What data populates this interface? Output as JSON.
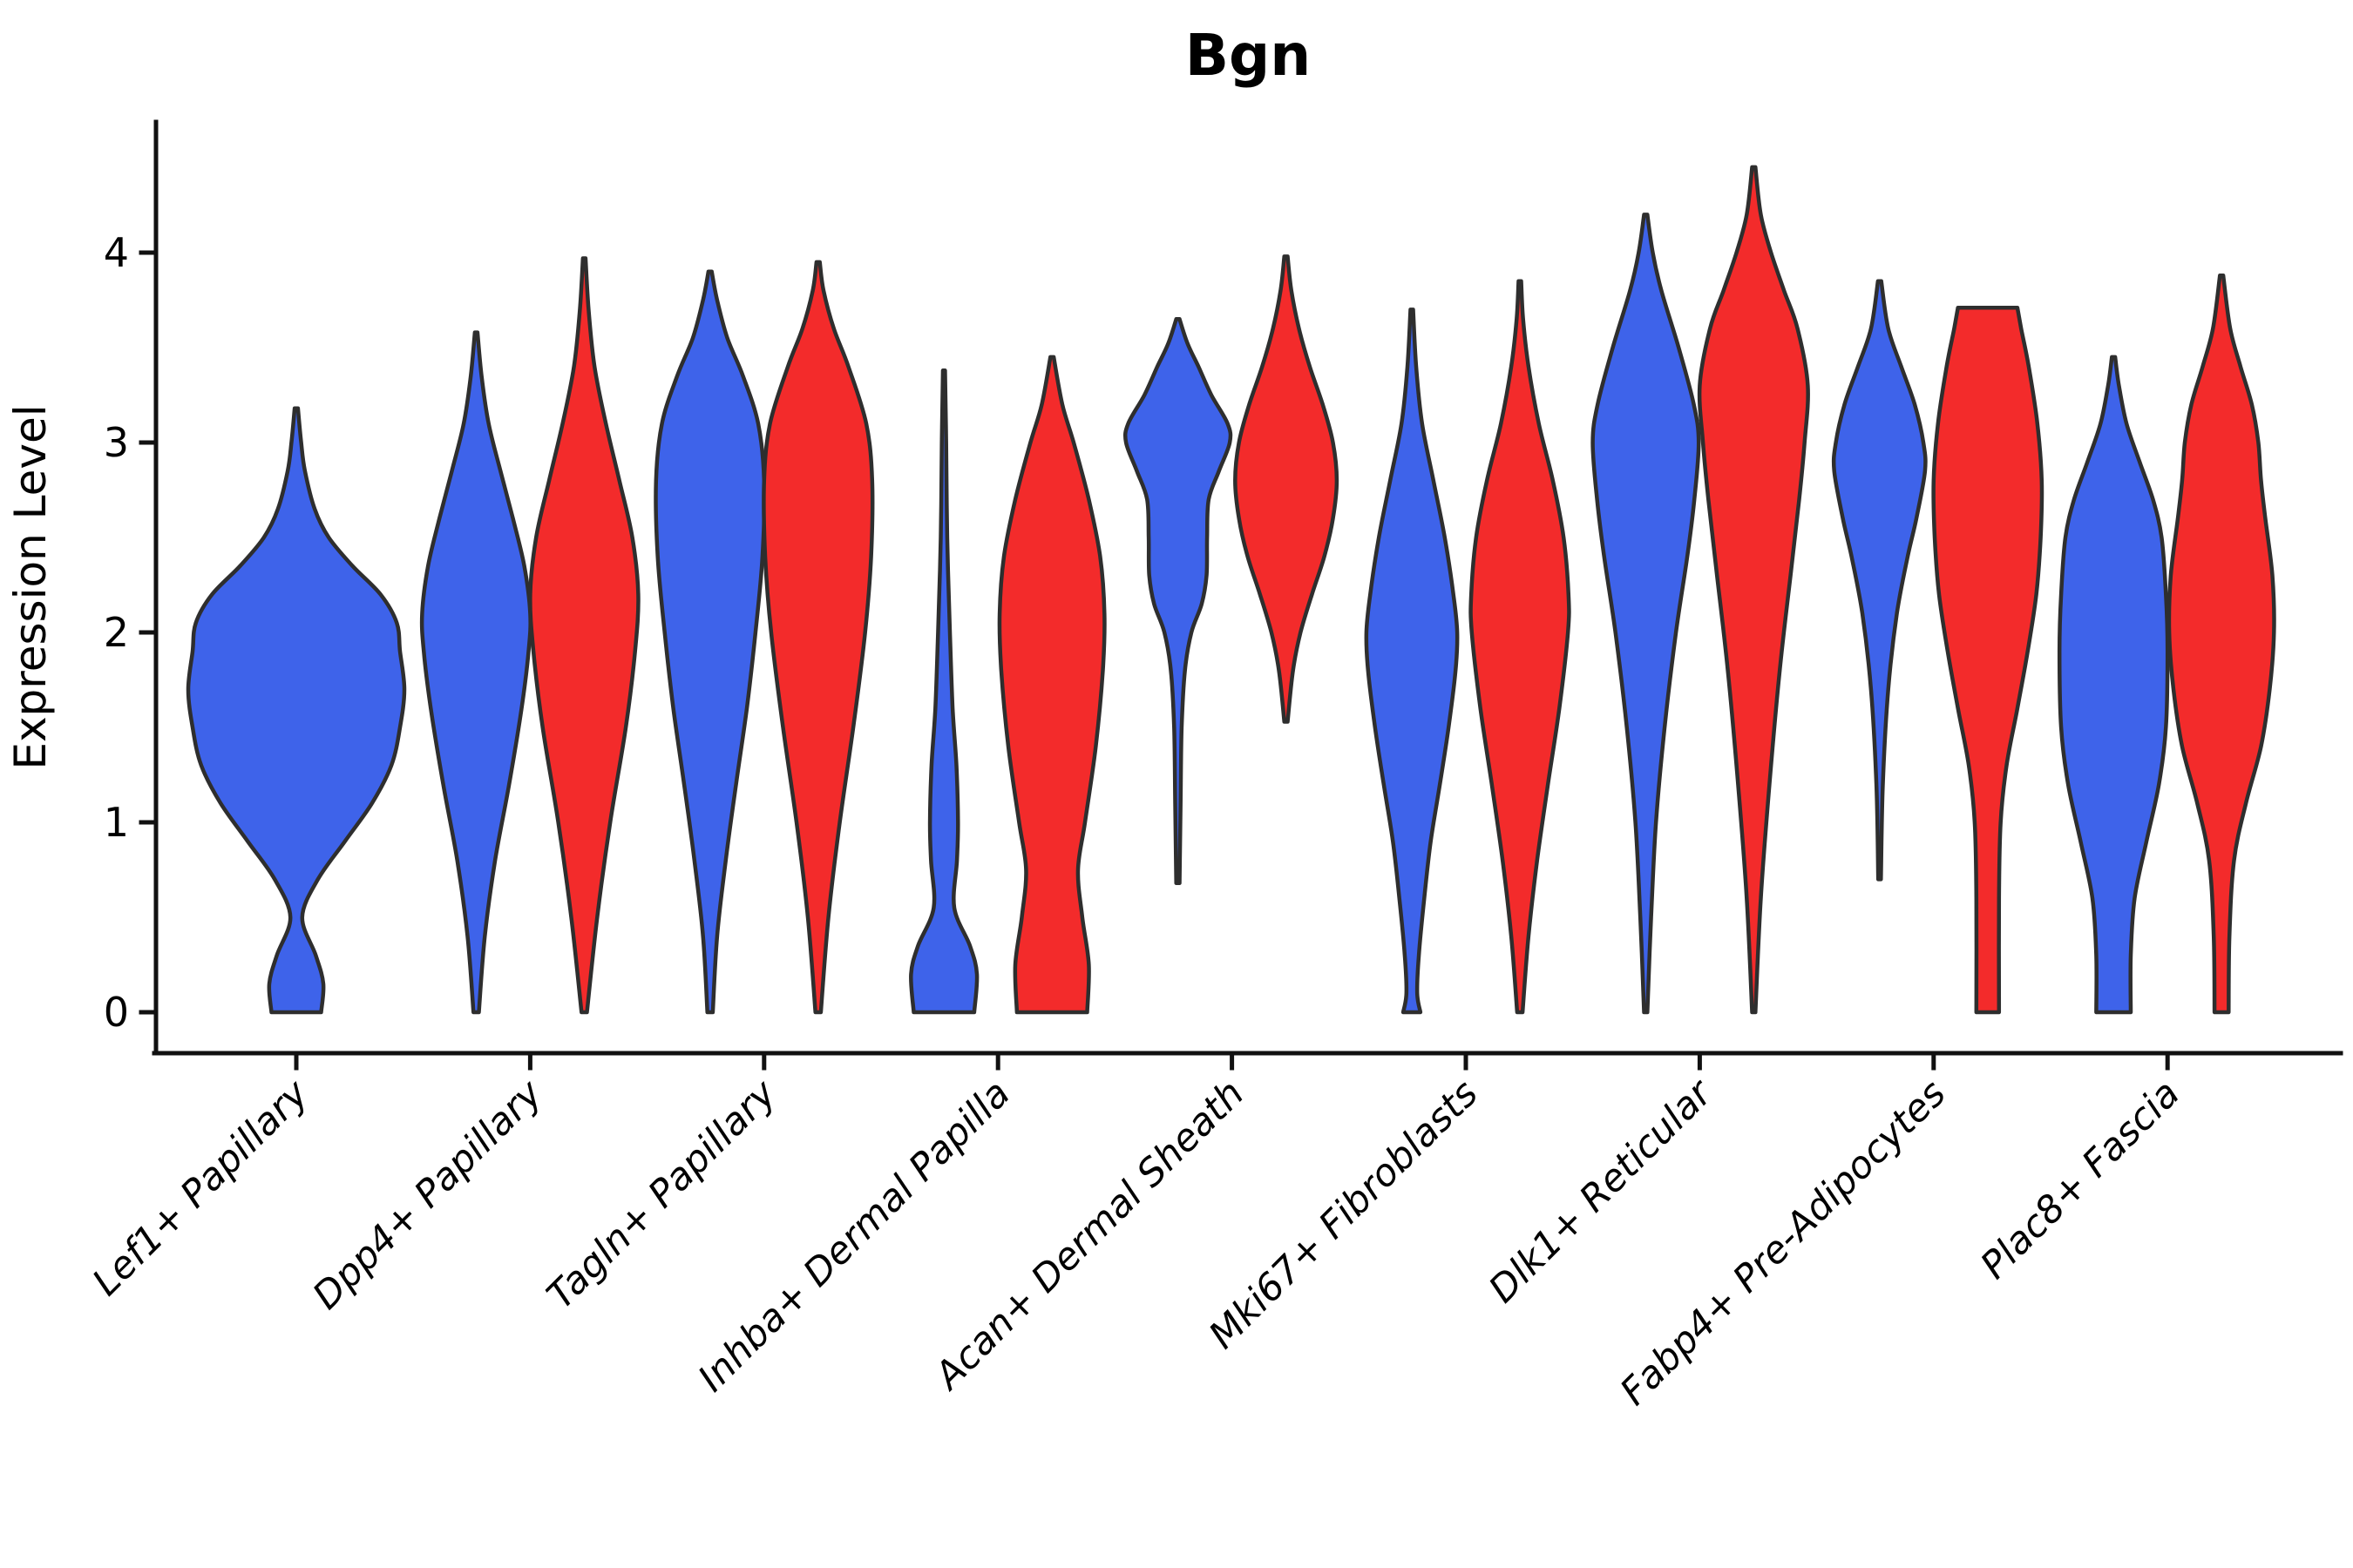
{
  "chart_data": {
    "type": "violin",
    "title": "Bgn",
    "ylabel": "Expression Level",
    "xlabel": "",
    "yticks": [
      0,
      1,
      2,
      3,
      4
    ],
    "ylim": [
      -0.2,
      4.7
    ],
    "grid": false,
    "legend": "none",
    "x_tick_rotation_deg": 45,
    "categories": [
      "Lef1+ Papillary",
      "Dpp4+ Papillary",
      "Tagln+ Papillary",
      "Inhba+ Dermal Papilla",
      "Acan+ Dermal Sheath",
      "Mki67+ Fibroblasts",
      "Dlk1+ Reticular",
      "Fabp4+ Pre-Adipocytes",
      "Plac8+ Fascia"
    ],
    "series_colors": {
      "blue": "#3E63EA",
      "red": "#F32B2B"
    },
    "outline_color": "#2E2E2E",
    "axis_color": "#111111",
    "violins": [
      {
        "category_index": 0,
        "color": "blue",
        "side": "single",
        "span_scale": 2,
        "range": [
          0,
          3.18
        ],
        "profile": [
          [
            0,
            0.23
          ],
          [
            0.15,
            0.25
          ],
          [
            0.3,
            0.18
          ],
          [
            0.5,
            0.055
          ],
          [
            0.7,
            0.2
          ],
          [
            0.9,
            0.45
          ],
          [
            1.1,
            0.7
          ],
          [
            1.3,
            0.88
          ],
          [
            1.5,
            0.96
          ],
          [
            1.7,
            1.0
          ],
          [
            1.9,
            0.96
          ],
          [
            2.05,
            0.93
          ],
          [
            2.2,
            0.78
          ],
          [
            2.35,
            0.52
          ],
          [
            2.5,
            0.3
          ],
          [
            2.65,
            0.17
          ],
          [
            2.85,
            0.08
          ],
          [
            3.0,
            0.045
          ],
          [
            3.18,
            0.015
          ]
        ]
      },
      {
        "category_index": 1,
        "color": "blue",
        "side": "left",
        "range": [
          0,
          3.58
        ],
        "profile": [
          [
            0,
            0.05
          ],
          [
            0.4,
            0.16
          ],
          [
            0.8,
            0.35
          ],
          [
            1.2,
            0.61
          ],
          [
            1.6,
            0.84
          ],
          [
            1.9,
            0.97
          ],
          [
            2.1,
            1.0
          ],
          [
            2.35,
            0.89
          ],
          [
            2.6,
            0.68
          ],
          [
            2.85,
            0.45
          ],
          [
            3.1,
            0.23
          ],
          [
            3.35,
            0.1
          ],
          [
            3.58,
            0.025
          ]
        ]
      },
      {
        "category_index": 1,
        "color": "red",
        "side": "right",
        "range": [
          0,
          3.97
        ],
        "profile": [
          [
            0,
            0.05
          ],
          [
            0.5,
            0.24
          ],
          [
            1.0,
            0.48
          ],
          [
            1.5,
            0.77
          ],
          [
            1.9,
            0.94
          ],
          [
            2.2,
            1.0
          ],
          [
            2.5,
            0.89
          ],
          [
            2.8,
            0.65
          ],
          [
            3.1,
            0.4
          ],
          [
            3.4,
            0.19
          ],
          [
            3.7,
            0.08
          ],
          [
            3.97,
            0.025
          ]
        ]
      },
      {
        "category_index": 2,
        "color": "blue",
        "side": "left",
        "range": [
          0,
          3.9
        ],
        "profile": [
          [
            0,
            0.05
          ],
          [
            0.4,
            0.13
          ],
          [
            0.8,
            0.29
          ],
          [
            1.2,
            0.48
          ],
          [
            1.6,
            0.68
          ],
          [
            2.0,
            0.84
          ],
          [
            2.4,
            0.97
          ],
          [
            2.8,
            1.0
          ],
          [
            3.1,
            0.89
          ],
          [
            3.35,
            0.61
          ],
          [
            3.55,
            0.32
          ],
          [
            3.75,
            0.13
          ],
          [
            3.9,
            0.03
          ]
        ]
      },
      {
        "category_index": 2,
        "color": "red",
        "side": "right",
        "range": [
          0,
          3.95
        ],
        "profile": [
          [
            0,
            0.05
          ],
          [
            0.5,
            0.19
          ],
          [
            1.0,
            0.4
          ],
          [
            1.5,
            0.65
          ],
          [
            2.0,
            0.87
          ],
          [
            2.4,
            0.98
          ],
          [
            2.8,
            1.0
          ],
          [
            3.1,
            0.89
          ],
          [
            3.4,
            0.56
          ],
          [
            3.6,
            0.29
          ],
          [
            3.8,
            0.1
          ],
          [
            3.95,
            0.03
          ]
        ]
      },
      {
        "category_index": 3,
        "color": "blue",
        "side": "left",
        "range": [
          0,
          3.38
        ],
        "profile": [
          [
            0,
            0.56
          ],
          [
            0.2,
            0.61
          ],
          [
            0.35,
            0.48
          ],
          [
            0.55,
            0.19
          ],
          [
            0.8,
            0.24
          ],
          [
            1.0,
            0.26
          ],
          [
            1.3,
            0.23
          ],
          [
            1.6,
            0.16
          ],
          [
            2.0,
            0.11
          ],
          [
            2.5,
            0.06
          ],
          [
            3.0,
            0.04
          ],
          [
            3.38,
            0.02
          ]
        ]
      },
      {
        "category_index": 3,
        "color": "red",
        "side": "right",
        "range": [
          0,
          3.45
        ],
        "profile": [
          [
            0,
            0.65
          ],
          [
            0.25,
            0.68
          ],
          [
            0.5,
            0.56
          ],
          [
            0.75,
            0.48
          ],
          [
            1.0,
            0.61
          ],
          [
            1.4,
            0.81
          ],
          [
            1.8,
            0.94
          ],
          [
            2.1,
            0.97
          ],
          [
            2.4,
            0.89
          ],
          [
            2.7,
            0.68
          ],
          [
            3.0,
            0.4
          ],
          [
            3.2,
            0.19
          ],
          [
            3.45,
            0.03
          ]
        ]
      },
      {
        "category_index": 4,
        "color": "blue",
        "side": "left",
        "range": [
          0.68,
          3.65
        ],
        "profile": [
          [
            0.68,
            0.03
          ],
          [
            1.1,
            0.05
          ],
          [
            1.5,
            0.07
          ],
          [
            1.8,
            0.13
          ],
          [
            2.0,
            0.25
          ],
          [
            2.15,
            0.44
          ],
          [
            2.3,
            0.53
          ],
          [
            2.5,
            0.54
          ],
          [
            2.7,
            0.57
          ],
          [
            2.85,
            0.76
          ],
          [
            3.0,
            0.96
          ],
          [
            3.1,
            0.92
          ],
          [
            3.25,
            0.62
          ],
          [
            3.4,
            0.38
          ],
          [
            3.52,
            0.18
          ],
          [
            3.65,
            0.03
          ]
        ]
      },
      {
        "category_index": 4,
        "color": "red",
        "side": "right",
        "range": [
          1.53,
          3.98
        ],
        "profile": [
          [
            1.53,
            0.03
          ],
          [
            1.8,
            0.13
          ],
          [
            2.0,
            0.27
          ],
          [
            2.2,
            0.48
          ],
          [
            2.4,
            0.71
          ],
          [
            2.6,
            0.87
          ],
          [
            2.8,
            0.94
          ],
          [
            3.0,
            0.87
          ],
          [
            3.2,
            0.68
          ],
          [
            3.4,
            0.44
          ],
          [
            3.6,
            0.24
          ],
          [
            3.8,
            0.1
          ],
          [
            3.98,
            0.03
          ]
        ]
      },
      {
        "category_index": 5,
        "color": "blue",
        "side": "left",
        "range": [
          0,
          3.7
        ],
        "profile": [
          [
            0,
            0.16
          ],
          [
            0.1,
            0.1
          ],
          [
            0.3,
            0.13
          ],
          [
            0.6,
            0.23
          ],
          [
            0.9,
            0.35
          ],
          [
            1.2,
            0.52
          ],
          [
            1.5,
            0.68
          ],
          [
            1.8,
            0.81
          ],
          [
            2.0,
            0.84
          ],
          [
            2.2,
            0.77
          ],
          [
            2.5,
            0.61
          ],
          [
            2.8,
            0.4
          ],
          [
            3.1,
            0.19
          ],
          [
            3.4,
            0.08
          ],
          [
            3.7,
            0.025
          ]
        ]
      },
      {
        "category_index": 5,
        "color": "red",
        "side": "right",
        "range": [
          0,
          3.85
        ],
        "profile": [
          [
            0,
            0.05
          ],
          [
            0.4,
            0.16
          ],
          [
            0.8,
            0.32
          ],
          [
            1.2,
            0.52
          ],
          [
            1.6,
            0.73
          ],
          [
            2.0,
            0.89
          ],
          [
            2.2,
            0.9
          ],
          [
            2.5,
            0.81
          ],
          [
            2.8,
            0.61
          ],
          [
            3.1,
            0.35
          ],
          [
            3.4,
            0.16
          ],
          [
            3.65,
            0.06
          ],
          [
            3.85,
            0.025
          ]
        ]
      },
      {
        "category_index": 6,
        "color": "blue",
        "side": "left",
        "range": [
          0,
          4.2
        ],
        "profile": [
          [
            0,
            0.03
          ],
          [
            0.5,
            0.1
          ],
          [
            1.0,
            0.19
          ],
          [
            1.5,
            0.35
          ],
          [
            2.0,
            0.56
          ],
          [
            2.4,
            0.77
          ],
          [
            2.7,
            0.9
          ],
          [
            3.0,
            0.98
          ],
          [
            3.2,
            0.89
          ],
          [
            3.5,
            0.61
          ],
          [
            3.8,
            0.29
          ],
          [
            4.0,
            0.13
          ],
          [
            4.2,
            0.03
          ]
        ]
      },
      {
        "category_index": 6,
        "color": "red",
        "side": "right",
        "range": [
          0,
          4.45
        ],
        "profile": [
          [
            0,
            0.03
          ],
          [
            0.6,
            0.13
          ],
          [
            1.2,
            0.29
          ],
          [
            1.8,
            0.48
          ],
          [
            2.3,
            0.68
          ],
          [
            2.7,
            0.84
          ],
          [
            3.0,
            0.94
          ],
          [
            3.3,
            1.0
          ],
          [
            3.6,
            0.81
          ],
          [
            3.8,
            0.56
          ],
          [
            4.0,
            0.32
          ],
          [
            4.2,
            0.13
          ],
          [
            4.45,
            0.03
          ]
        ]
      },
      {
        "category_index": 7,
        "color": "blue",
        "side": "left",
        "range": [
          0.7,
          3.85
        ],
        "profile": [
          [
            0.7,
            0.025
          ],
          [
            1.2,
            0.06
          ],
          [
            1.7,
            0.16
          ],
          [
            2.1,
            0.32
          ],
          [
            2.4,
            0.52
          ],
          [
            2.6,
            0.68
          ],
          [
            2.85,
            0.84
          ],
          [
            3.0,
            0.81
          ],
          [
            3.2,
            0.65
          ],
          [
            3.4,
            0.4
          ],
          [
            3.6,
            0.16
          ],
          [
            3.85,
            0.03
          ]
        ]
      },
      {
        "category_index": 7,
        "color": "red",
        "side": "right",
        "range": [
          0,
          3.71
        ],
        "flat_top": true,
        "profile": [
          [
            0,
            0.21
          ],
          [
            0.6,
            0.21
          ],
          [
            1.0,
            0.24
          ],
          [
            1.3,
            0.35
          ],
          [
            1.6,
            0.55
          ],
          [
            1.9,
            0.74
          ],
          [
            2.2,
            0.9
          ],
          [
            2.5,
            0.98
          ],
          [
            2.8,
            1.0
          ],
          [
            3.1,
            0.92
          ],
          [
            3.4,
            0.76
          ],
          [
            3.6,
            0.62
          ],
          [
            3.71,
            0.55
          ]
        ]
      },
      {
        "category_index": 8,
        "color": "blue",
        "side": "left",
        "range": [
          0,
          3.45
        ],
        "profile": [
          [
            0,
            0.32
          ],
          [
            0.3,
            0.32
          ],
          [
            0.6,
            0.39
          ],
          [
            0.9,
            0.61
          ],
          [
            1.2,
            0.84
          ],
          [
            1.5,
            0.97
          ],
          [
            1.9,
            1.0
          ],
          [
            2.2,
            0.97
          ],
          [
            2.5,
            0.89
          ],
          [
            2.7,
            0.73
          ],
          [
            2.9,
            0.48
          ],
          [
            3.1,
            0.24
          ],
          [
            3.3,
            0.1
          ],
          [
            3.45,
            0.03
          ]
        ]
      },
      {
        "category_index": 8,
        "color": "red",
        "side": "right",
        "range": [
          0,
          3.88
        ],
        "profile": [
          [
            0,
            0.13
          ],
          [
            0.4,
            0.145
          ],
          [
            0.8,
            0.23
          ],
          [
            1.1,
            0.45
          ],
          [
            1.4,
            0.73
          ],
          [
            1.7,
            0.89
          ],
          [
            2.0,
            0.97
          ],
          [
            2.3,
            0.94
          ],
          [
            2.6,
            0.81
          ],
          [
            2.8,
            0.73
          ],
          [
            3.0,
            0.68
          ],
          [
            3.2,
            0.56
          ],
          [
            3.4,
            0.35
          ],
          [
            3.6,
            0.16
          ],
          [
            3.88,
            0.03
          ]
        ]
      }
    ]
  }
}
